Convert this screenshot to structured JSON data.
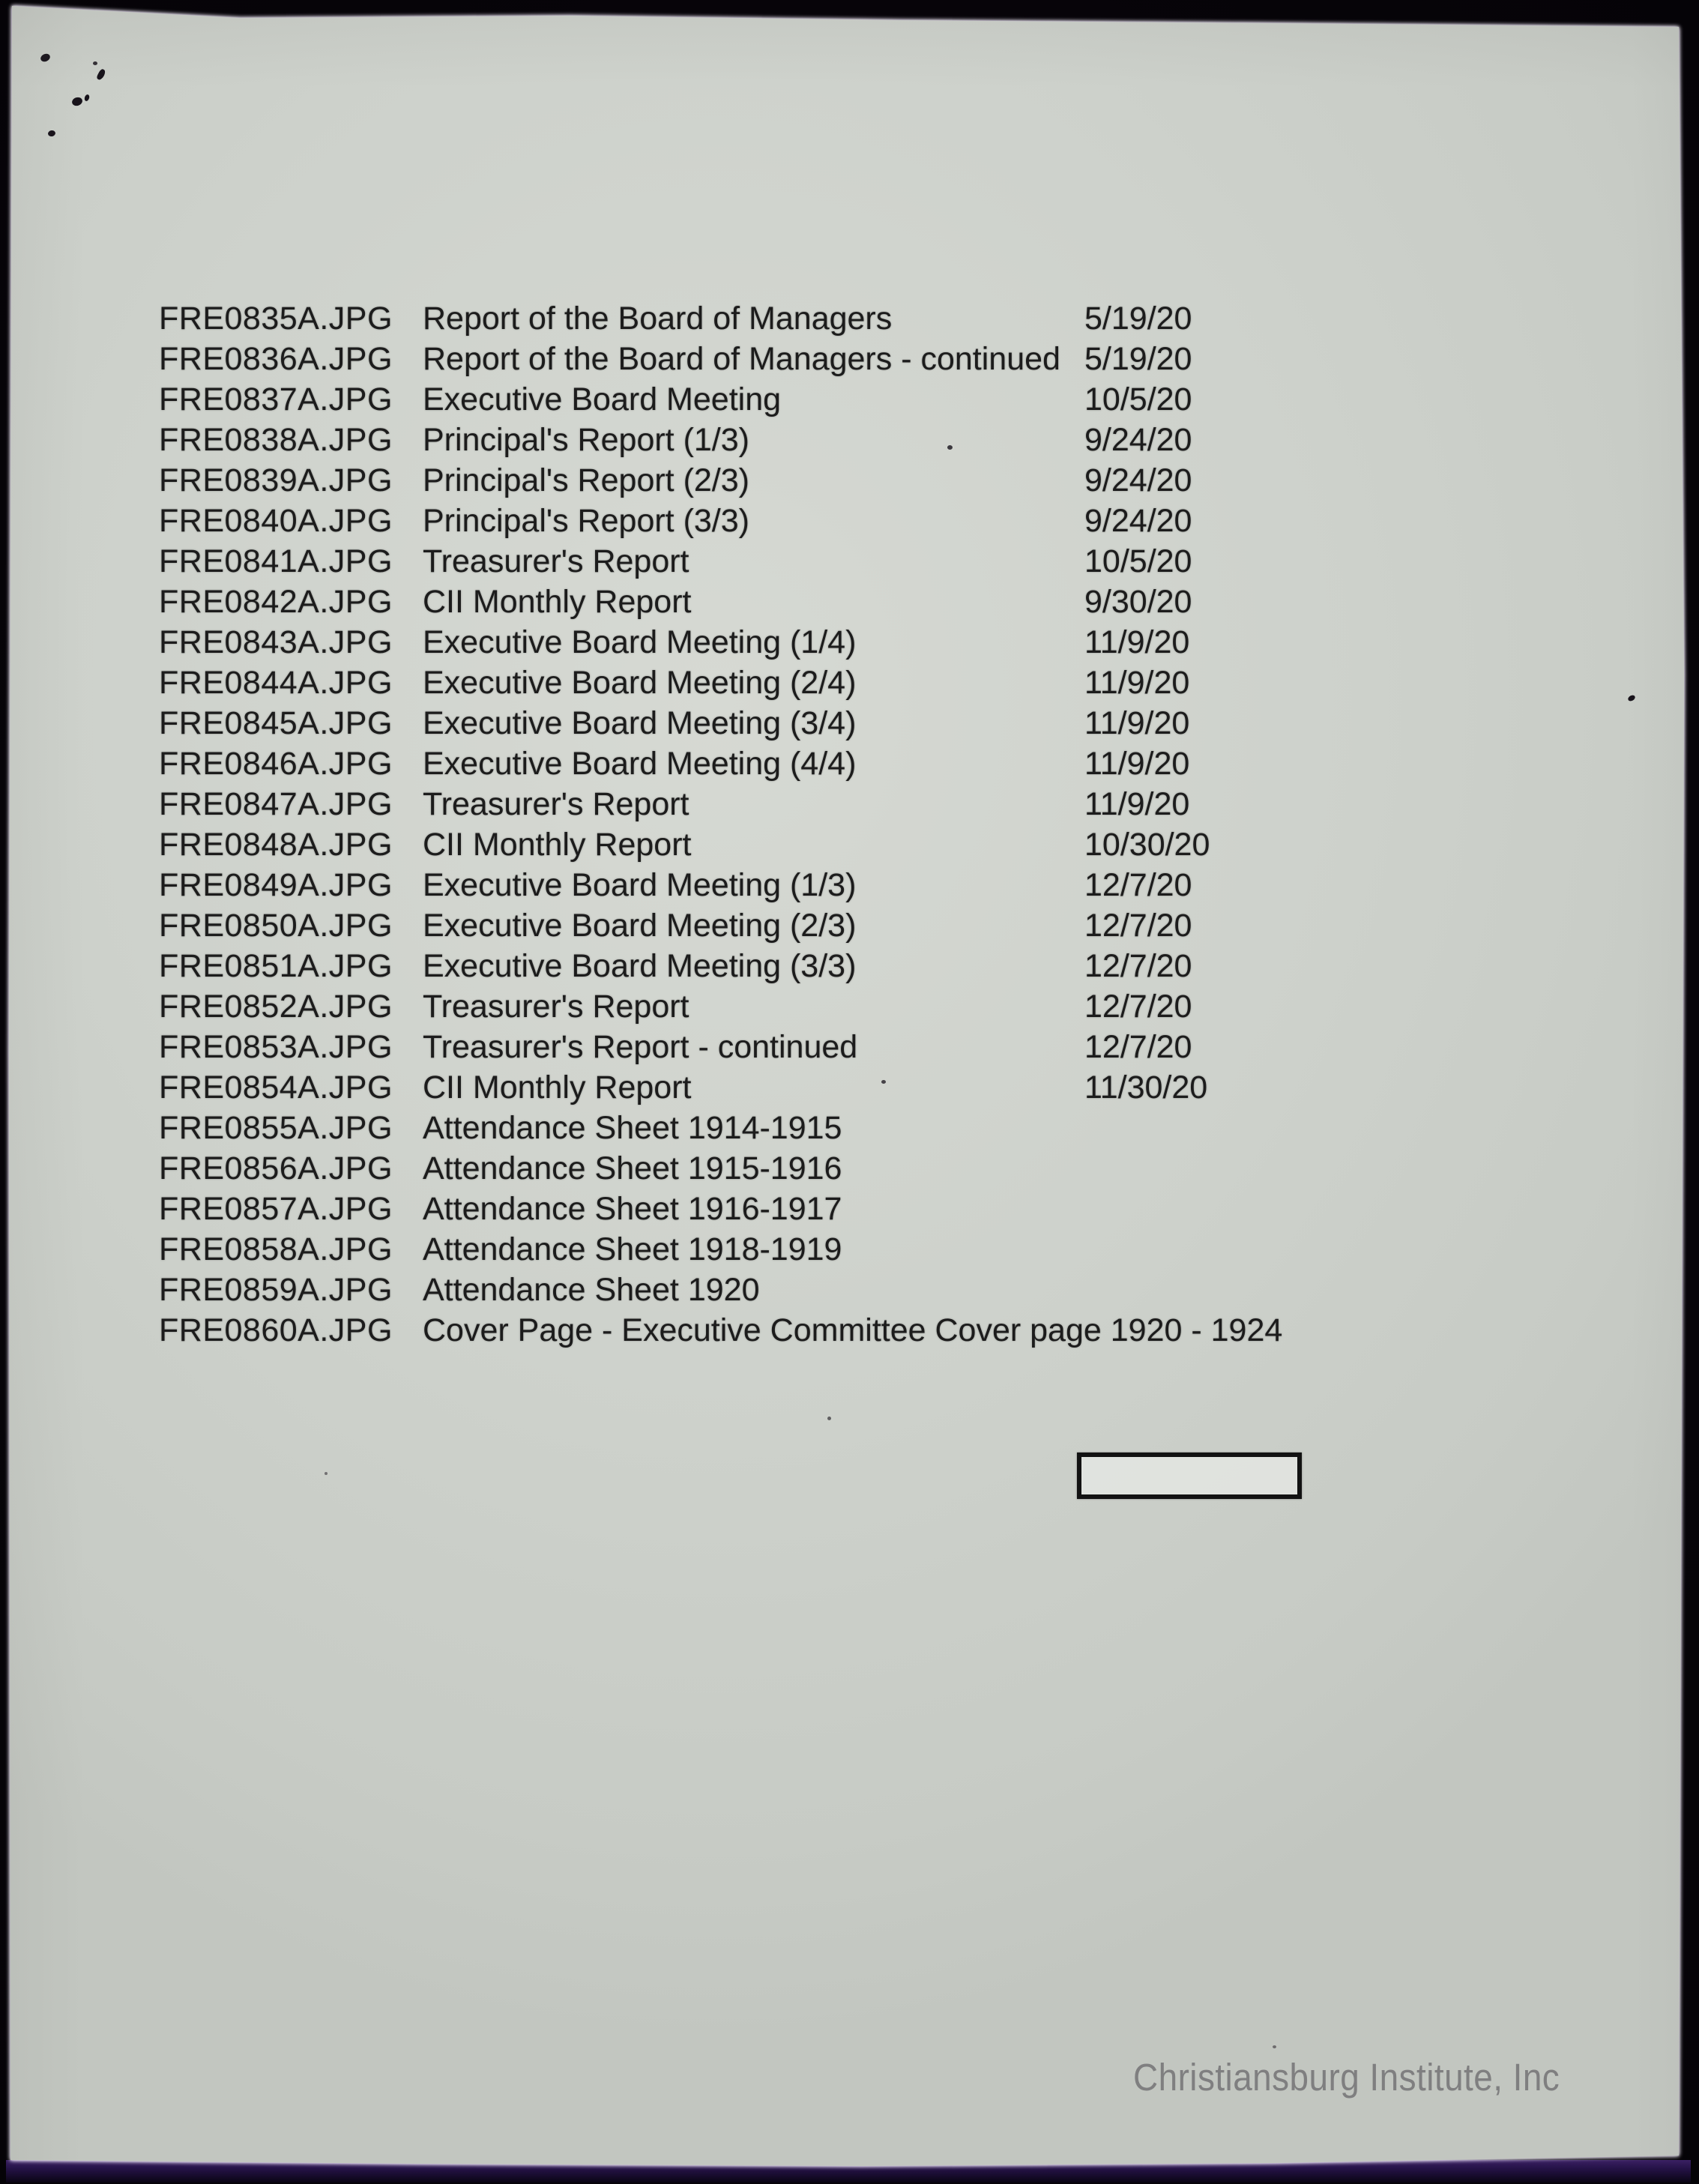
{
  "page": {
    "kind": "scanned-file-index",
    "watermark": "Christiansburg Institute, Inc"
  },
  "file_index": {
    "rows": [
      {
        "file": "FRE0835A.JPG",
        "description": "Report of the Board of Managers",
        "date": "5/19/20"
      },
      {
        "file": "FRE0836A.JPG",
        "description": "Report of the Board of Managers - continued",
        "date": "5/19/20"
      },
      {
        "file": "FRE0837A.JPG",
        "description": "Executive Board Meeting",
        "date": "10/5/20"
      },
      {
        "file": "FRE0838A.JPG",
        "description": "Principal's Report (1/3)",
        "date": "9/24/20"
      },
      {
        "file": "FRE0839A.JPG",
        "description": "Principal's Report (2/3)",
        "date": "9/24/20"
      },
      {
        "file": "FRE0840A.JPG",
        "description": "Principal's Report (3/3)",
        "date": "9/24/20"
      },
      {
        "file": "FRE0841A.JPG",
        "description": "Treasurer's Report",
        "date": "10/5/20"
      },
      {
        "file": "FRE0842A.JPG",
        "description": "CII Monthly Report",
        "date": "9/30/20"
      },
      {
        "file": "FRE0843A.JPG",
        "description": "Executive Board Meeting (1/4)",
        "date": "11/9/20"
      },
      {
        "file": "FRE0844A.JPG",
        "description": "Executive Board Meeting (2/4)",
        "date": "11/9/20"
      },
      {
        "file": "FRE0845A.JPG",
        "description": "Executive Board Meeting (3/4)",
        "date": "11/9/20"
      },
      {
        "file": "FRE0846A.JPG",
        "description": "Executive Board Meeting (4/4)",
        "date": "11/9/20"
      },
      {
        "file": "FRE0847A.JPG",
        "description": "Treasurer's Report",
        "date": "11/9/20"
      },
      {
        "file": "FRE0848A.JPG",
        "description": "CII Monthly Report",
        "date": "10/30/20"
      },
      {
        "file": "FRE0849A.JPG",
        "description": "Executive Board Meeting (1/3)",
        "date": "12/7/20"
      },
      {
        "file": "FRE0850A.JPG",
        "description": "Executive Board Meeting (2/3)",
        "date": "12/7/20"
      },
      {
        "file": "FRE0851A.JPG",
        "description": "Executive Board Meeting (3/3)",
        "date": "12/7/20"
      },
      {
        "file": "FRE0852A.JPG",
        "description": "Treasurer's Report",
        "date": "12/7/20"
      },
      {
        "file": "FRE0853A.JPG",
        "description": "Treasurer's Report - continued",
        "date": "12/7/20"
      },
      {
        "file": "FRE0854A.JPG",
        "description": "CII Monthly Report",
        "date": "11/30/20"
      },
      {
        "file": "FRE0855A.JPG",
        "description": "Attendance Sheet 1914-1915",
        "date": ""
      },
      {
        "file": "FRE0856A.JPG",
        "description": "Attendance Sheet 1915-1916",
        "date": ""
      },
      {
        "file": "FRE0857A.JPG",
        "description": "Attendance Sheet 1916-1917",
        "date": ""
      },
      {
        "file": "FRE0858A.JPG",
        "description": "Attendance Sheet 1918-1919",
        "date": ""
      },
      {
        "file": "FRE0859A.JPG",
        "description": "Attendance Sheet 1920",
        "date": ""
      },
      {
        "file": "FRE0860A.JPG",
        "description": "Cover Page - Executive Committee Cover page 1920 - 1924",
        "date": ""
      }
    ]
  },
  "colors": {
    "paper": "#ced2cc",
    "surround": "#08050b",
    "ink": "#1c1c1c",
    "watermark_gray": "#7f7f80",
    "edge_glow": "#ebe2fa",
    "bottom_glow": "#2e1856"
  }
}
